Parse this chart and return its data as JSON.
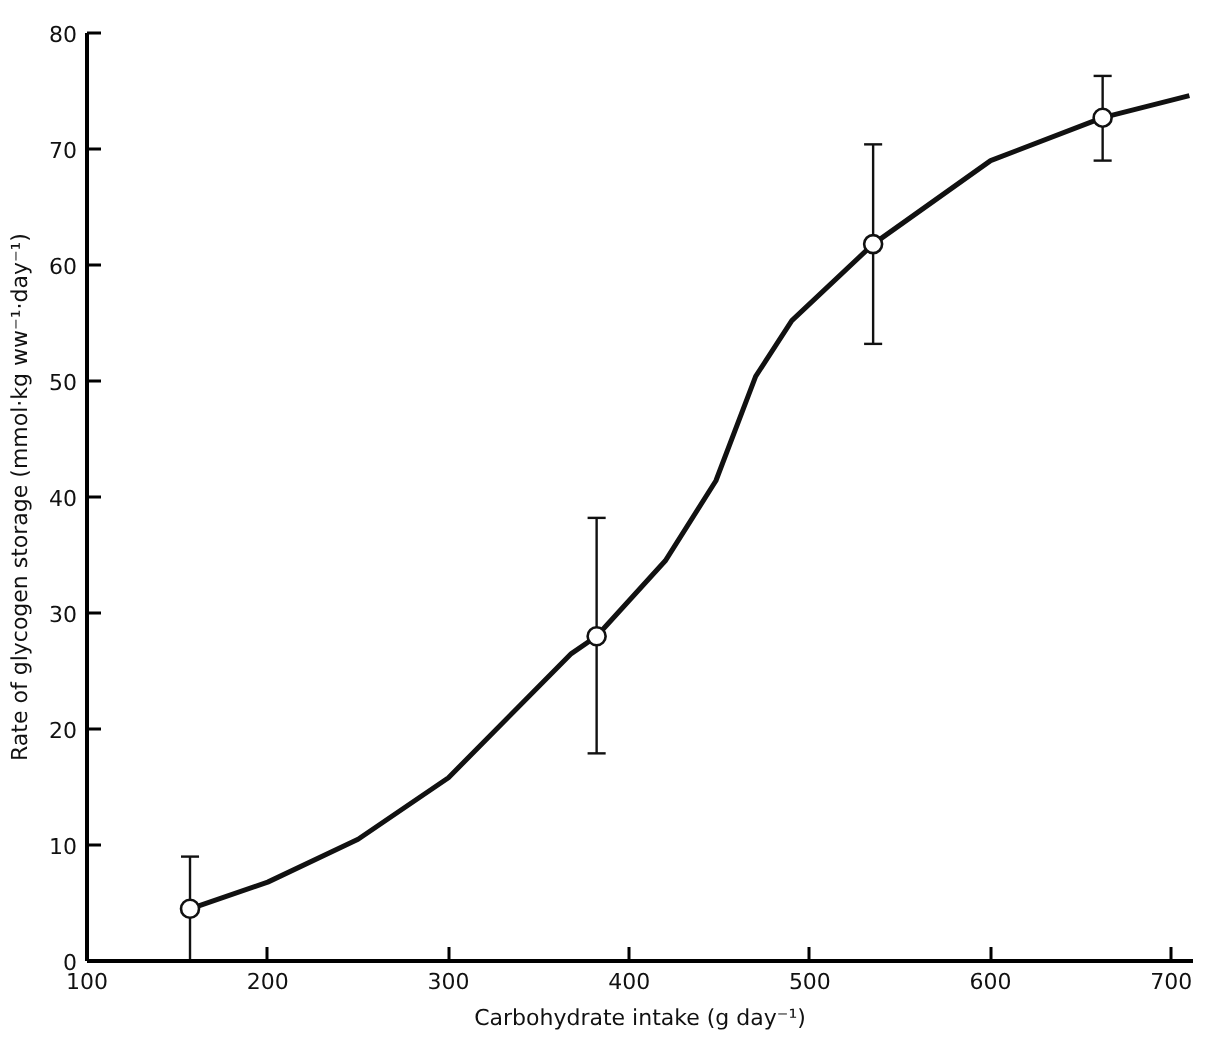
{
  "chart_data": {
    "type": "line",
    "xlabel": "Carbohydrate intake (g day⁻¹)",
    "ylabel": "Rate of glycogen storage (mmol·kg ww⁻¹·day⁻¹)",
    "xlim": [
      100,
      712
    ],
    "ylim": [
      0,
      80
    ],
    "xticks": [
      100,
      200,
      300,
      400,
      500,
      600,
      700
    ],
    "yticks": [
      0,
      10,
      20,
      30,
      40,
      50,
      60,
      70,
      80
    ],
    "grid": false,
    "series": [
      {
        "color": "#111111",
        "line_style": "solid",
        "marker": "none",
        "x": [
          157,
          200,
          250,
          300,
          368,
          382,
          420,
          448,
          470,
          490,
          535,
          600,
          662,
          710
        ],
        "values": [
          4.5,
          6.8,
          10.5,
          15.8,
          26.5,
          28,
          34.5,
          41.4,
          50.4,
          55.2,
          61.8,
          69,
          72.7,
          74.6
        ]
      },
      {
        "type": "scatter",
        "color": "#111111",
        "marker": "circle",
        "x": [
          157,
          382,
          535,
          662
        ],
        "values": [
          4.5,
          28,
          61.8,
          72.7
        ],
        "errors": [
          [
            0,
            9
          ],
          [
            17.9,
            38.2
          ],
          [
            53.2,
            70.4
          ],
          [
            69,
            76.3
          ]
        ]
      }
    ]
  }
}
